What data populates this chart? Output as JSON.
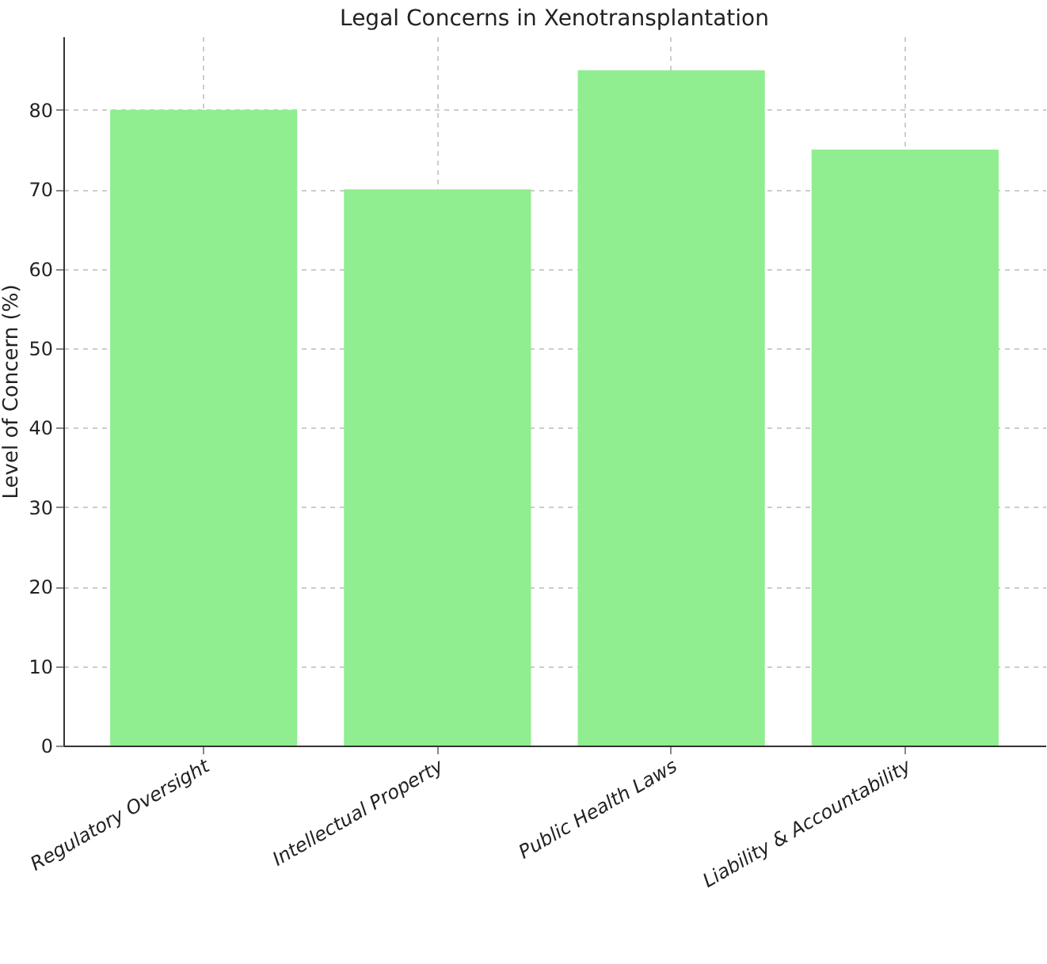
{
  "chart_data": {
    "type": "bar",
    "title": "Legal Concerns in Xenotransplantation",
    "ylabel": "Level of Concern (%)",
    "categories": [
      "Regulatory Oversight",
      "Intellectual Property",
      "Public Health Laws",
      "Liability & Accountability"
    ],
    "values": [
      80,
      70,
      85,
      75
    ],
    "color": "#90ee90",
    "ylim": [
      0,
      89.25
    ],
    "yticks": [
      0,
      10,
      20,
      30,
      40,
      50,
      60,
      70,
      80
    ],
    "grid": true
  }
}
